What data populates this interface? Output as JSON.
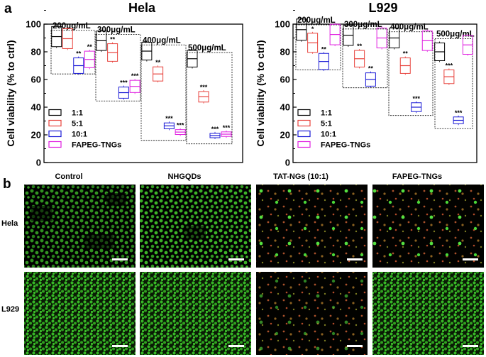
{
  "panel_a_label": "a",
  "panel_b_label": "b",
  "chart_data": [
    {
      "type": "box",
      "title": "Hela",
      "ylabel": "Cell viability (% to ctrl)",
      "ylim": [
        0,
        100
      ],
      "yticks": [
        0,
        20,
        40,
        60,
        80,
        100
      ],
      "legend": [
        "1:1",
        "5:1",
        "10:1",
        "FAPEG-TNGs"
      ],
      "legend_placement": "bottom-left",
      "groups": [
        {
          "label": "200μg/mL",
          "values": [
            91,
            89.5,
            70,
            74.5
          ],
          "sig": [
            "",
            "",
            "**",
            "**"
          ]
        },
        {
          "label": "300μg/mL",
          "values": [
            88,
            79.5,
            50.5,
            55
          ],
          "sig": [
            "",
            "**",
            "***",
            "***"
          ]
        },
        {
          "label": "400μg/mL",
          "values": [
            80.5,
            64,
            26.5,
            22
          ],
          "sig": [
            "",
            "**",
            "***",
            "***"
          ]
        },
        {
          "label": "500μg/mL",
          "values": [
            75,
            47.5,
            19.5,
            20.5
          ],
          "sig": [
            "",
            "***",
            "***",
            "***"
          ]
        }
      ]
    },
    {
      "type": "box",
      "title": "L929",
      "ylabel": "Cell viability (% to ctrl)",
      "ylim": [
        0,
        100
      ],
      "yticks": [
        0,
        20,
        40,
        60,
        80,
        100
      ],
      "legend": [
        "1:1",
        "5:1",
        "10:1",
        "FAPEG-TNGs"
      ],
      "legend_placement": "bottom-left",
      "groups": [
        {
          "label": "200μg/mL",
          "values": [
            96,
            86.5,
            73,
            92.5
          ],
          "sig": [
            "",
            "*",
            "**",
            ""
          ]
        },
        {
          "label": "300μg/mL",
          "values": [
            92,
            75,
            60,
            90
          ],
          "sig": [
            "",
            "**",
            "**",
            ""
          ]
        },
        {
          "label": "400μg/mL",
          "values": [
            90,
            70,
            40,
            88
          ],
          "sig": [
            "",
            "**",
            "***",
            ""
          ]
        },
        {
          "label": "500μg/mL",
          "values": [
            80,
            62,
            30.5,
            85
          ],
          "sig": [
            "",
            "***",
            "***",
            ""
          ]
        }
      ]
    }
  ],
  "series_colors": [
    "#000000",
    "#e8423c",
    "#1a1ad6",
    "#e020e0"
  ],
  "micro": {
    "columns": [
      "Control",
      "NHGQDs",
      "TAT-NGs (10:1)",
      "FAPEG-TNGs"
    ],
    "rows": [
      "Hela",
      "L929"
    ]
  }
}
